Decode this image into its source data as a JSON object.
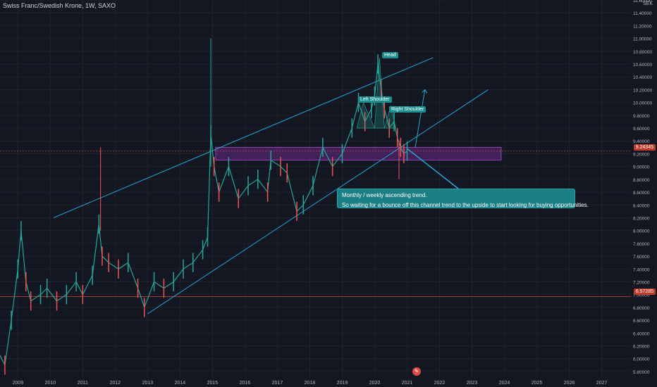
{
  "header": {
    "title": "Swiss Franc/Swedish Krone, 1W, SAXO"
  },
  "axis": {
    "currency": "SEK"
  },
  "price_tags": {
    "current": "9.24345",
    "lower": "6.97285"
  },
  "labels": {
    "head": "Head",
    "left_shoulder": "Left Shoulder",
    "right_shoulder": "Right Shoulder"
  },
  "callout": {
    "line1": "Monthly / weekly ascending trend.",
    "line2": "So waiting for a bounce off this channel trend to the upside to start looking for buying opportunities."
  },
  "colors": {
    "background": "#131722",
    "trend": "#26a6d1",
    "zone": "#7b2a9a",
    "up": "#26a69a",
    "down": "#ef5350"
  },
  "chart_data": {
    "type": "line",
    "title": "Swiss Franc/Swedish Krone, 1W, SAXO",
    "xlabel": "",
    "ylabel": "",
    "x_ticks": [
      "2009",
      "2010",
      "2011",
      "2012",
      "2013",
      "2014",
      "2015",
      "2016",
      "2017",
      "2018",
      "2019",
      "2020",
      "2021",
      "2022",
      "2023",
      "2024",
      "2025",
      "2026",
      "2027"
    ],
    "y_ticks": [
      "11.60000",
      "11.40000",
      "11.20000",
      "11.00000",
      "10.80000",
      "10.60000",
      "10.40000",
      "10.20000",
      "10.00000",
      "9.80000",
      "9.60000",
      "9.40000",
      "9.20000",
      "9.00000",
      "8.80000",
      "8.60000",
      "8.40000",
      "8.20000",
      "8.00000",
      "7.80000",
      "7.60000",
      "7.40000",
      "7.20000",
      "7.00000",
      "6.80000",
      "6.60000",
      "6.40000",
      "6.20000",
      "6.00000",
      "5.80000"
    ],
    "ylim": [
      5.7,
      11.6
    ],
    "series": [
      {
        "values": [
          [
            2008.5,
            6.1
          ],
          [
            2008.7,
            5.9
          ],
          [
            2008.9,
            6.6
          ],
          [
            2009.1,
            7.4
          ],
          [
            2009.2,
            8.0
          ],
          [
            2009.35,
            7.2
          ],
          [
            2009.5,
            6.9
          ],
          [
            2009.8,
            7.0
          ],
          [
            2010.0,
            7.1
          ],
          [
            2010.3,
            6.9
          ],
          [
            2010.6,
            7.0
          ],
          [
            2010.9,
            7.2
          ],
          [
            2011.1,
            7.0
          ],
          [
            2011.4,
            7.3
          ],
          [
            2011.6,
            8.1
          ],
          [
            2011.7,
            7.6
          ],
          [
            2011.9,
            7.5
          ],
          [
            2012.2,
            7.4
          ],
          [
            2012.5,
            7.5
          ],
          [
            2012.8,
            7.1
          ],
          [
            2013.0,
            6.8
          ],
          [
            2013.3,
            7.2
          ],
          [
            2013.6,
            7.1
          ],
          [
            2013.9,
            7.2
          ],
          [
            2014.2,
            7.4
          ],
          [
            2014.5,
            7.5
          ],
          [
            2014.8,
            7.7
          ],
          [
            2014.95,
            7.9
          ],
          [
            2015.05,
            9.5
          ],
          [
            2015.15,
            9.0
          ],
          [
            2015.3,
            8.6
          ],
          [
            2015.6,
            9.0
          ],
          [
            2015.9,
            8.5
          ],
          [
            2016.2,
            8.7
          ],
          [
            2016.5,
            8.8
          ],
          [
            2016.8,
            8.6
          ],
          [
            2016.9,
            9.1
          ],
          [
            2017.2,
            9.0
          ],
          [
            2017.4,
            8.9
          ],
          [
            2017.7,
            8.3
          ],
          [
            2017.9,
            8.4
          ],
          [
            2018.2,
            8.7
          ],
          [
            2018.5,
            9.3
          ],
          [
            2018.8,
            9.0
          ],
          [
            2019.1,
            9.2
          ],
          [
            2019.4,
            9.6
          ],
          [
            2019.6,
            10.0
          ],
          [
            2019.8,
            9.7
          ],
          [
            2020.0,
            9.9
          ],
          [
            2020.1,
            10.1
          ],
          [
            2020.2,
            10.6
          ],
          [
            2020.3,
            10.2
          ],
          [
            2020.4,
            9.9
          ],
          [
            2020.55,
            9.6
          ],
          [
            2020.7,
            9.7
          ],
          [
            2020.8,
            9.45
          ],
          [
            2020.9,
            9.3
          ],
          [
            2021.0,
            9.2
          ],
          [
            2021.1,
            9.24
          ]
        ]
      }
    ],
    "annotations": [
      {
        "type": "trend",
        "from": [
          2010.2,
          8.2
        ],
        "to": [
          2021.9,
          10.7
        ]
      },
      {
        "type": "trend",
        "from": [
          2013.1,
          6.7
        ],
        "to": [
          2023.6,
          10.2
        ]
      },
      {
        "type": "zone",
        "x": [
          2015.2,
          2024.0
        ],
        "y": [
          9.1,
          9.3
        ]
      }
    ]
  }
}
